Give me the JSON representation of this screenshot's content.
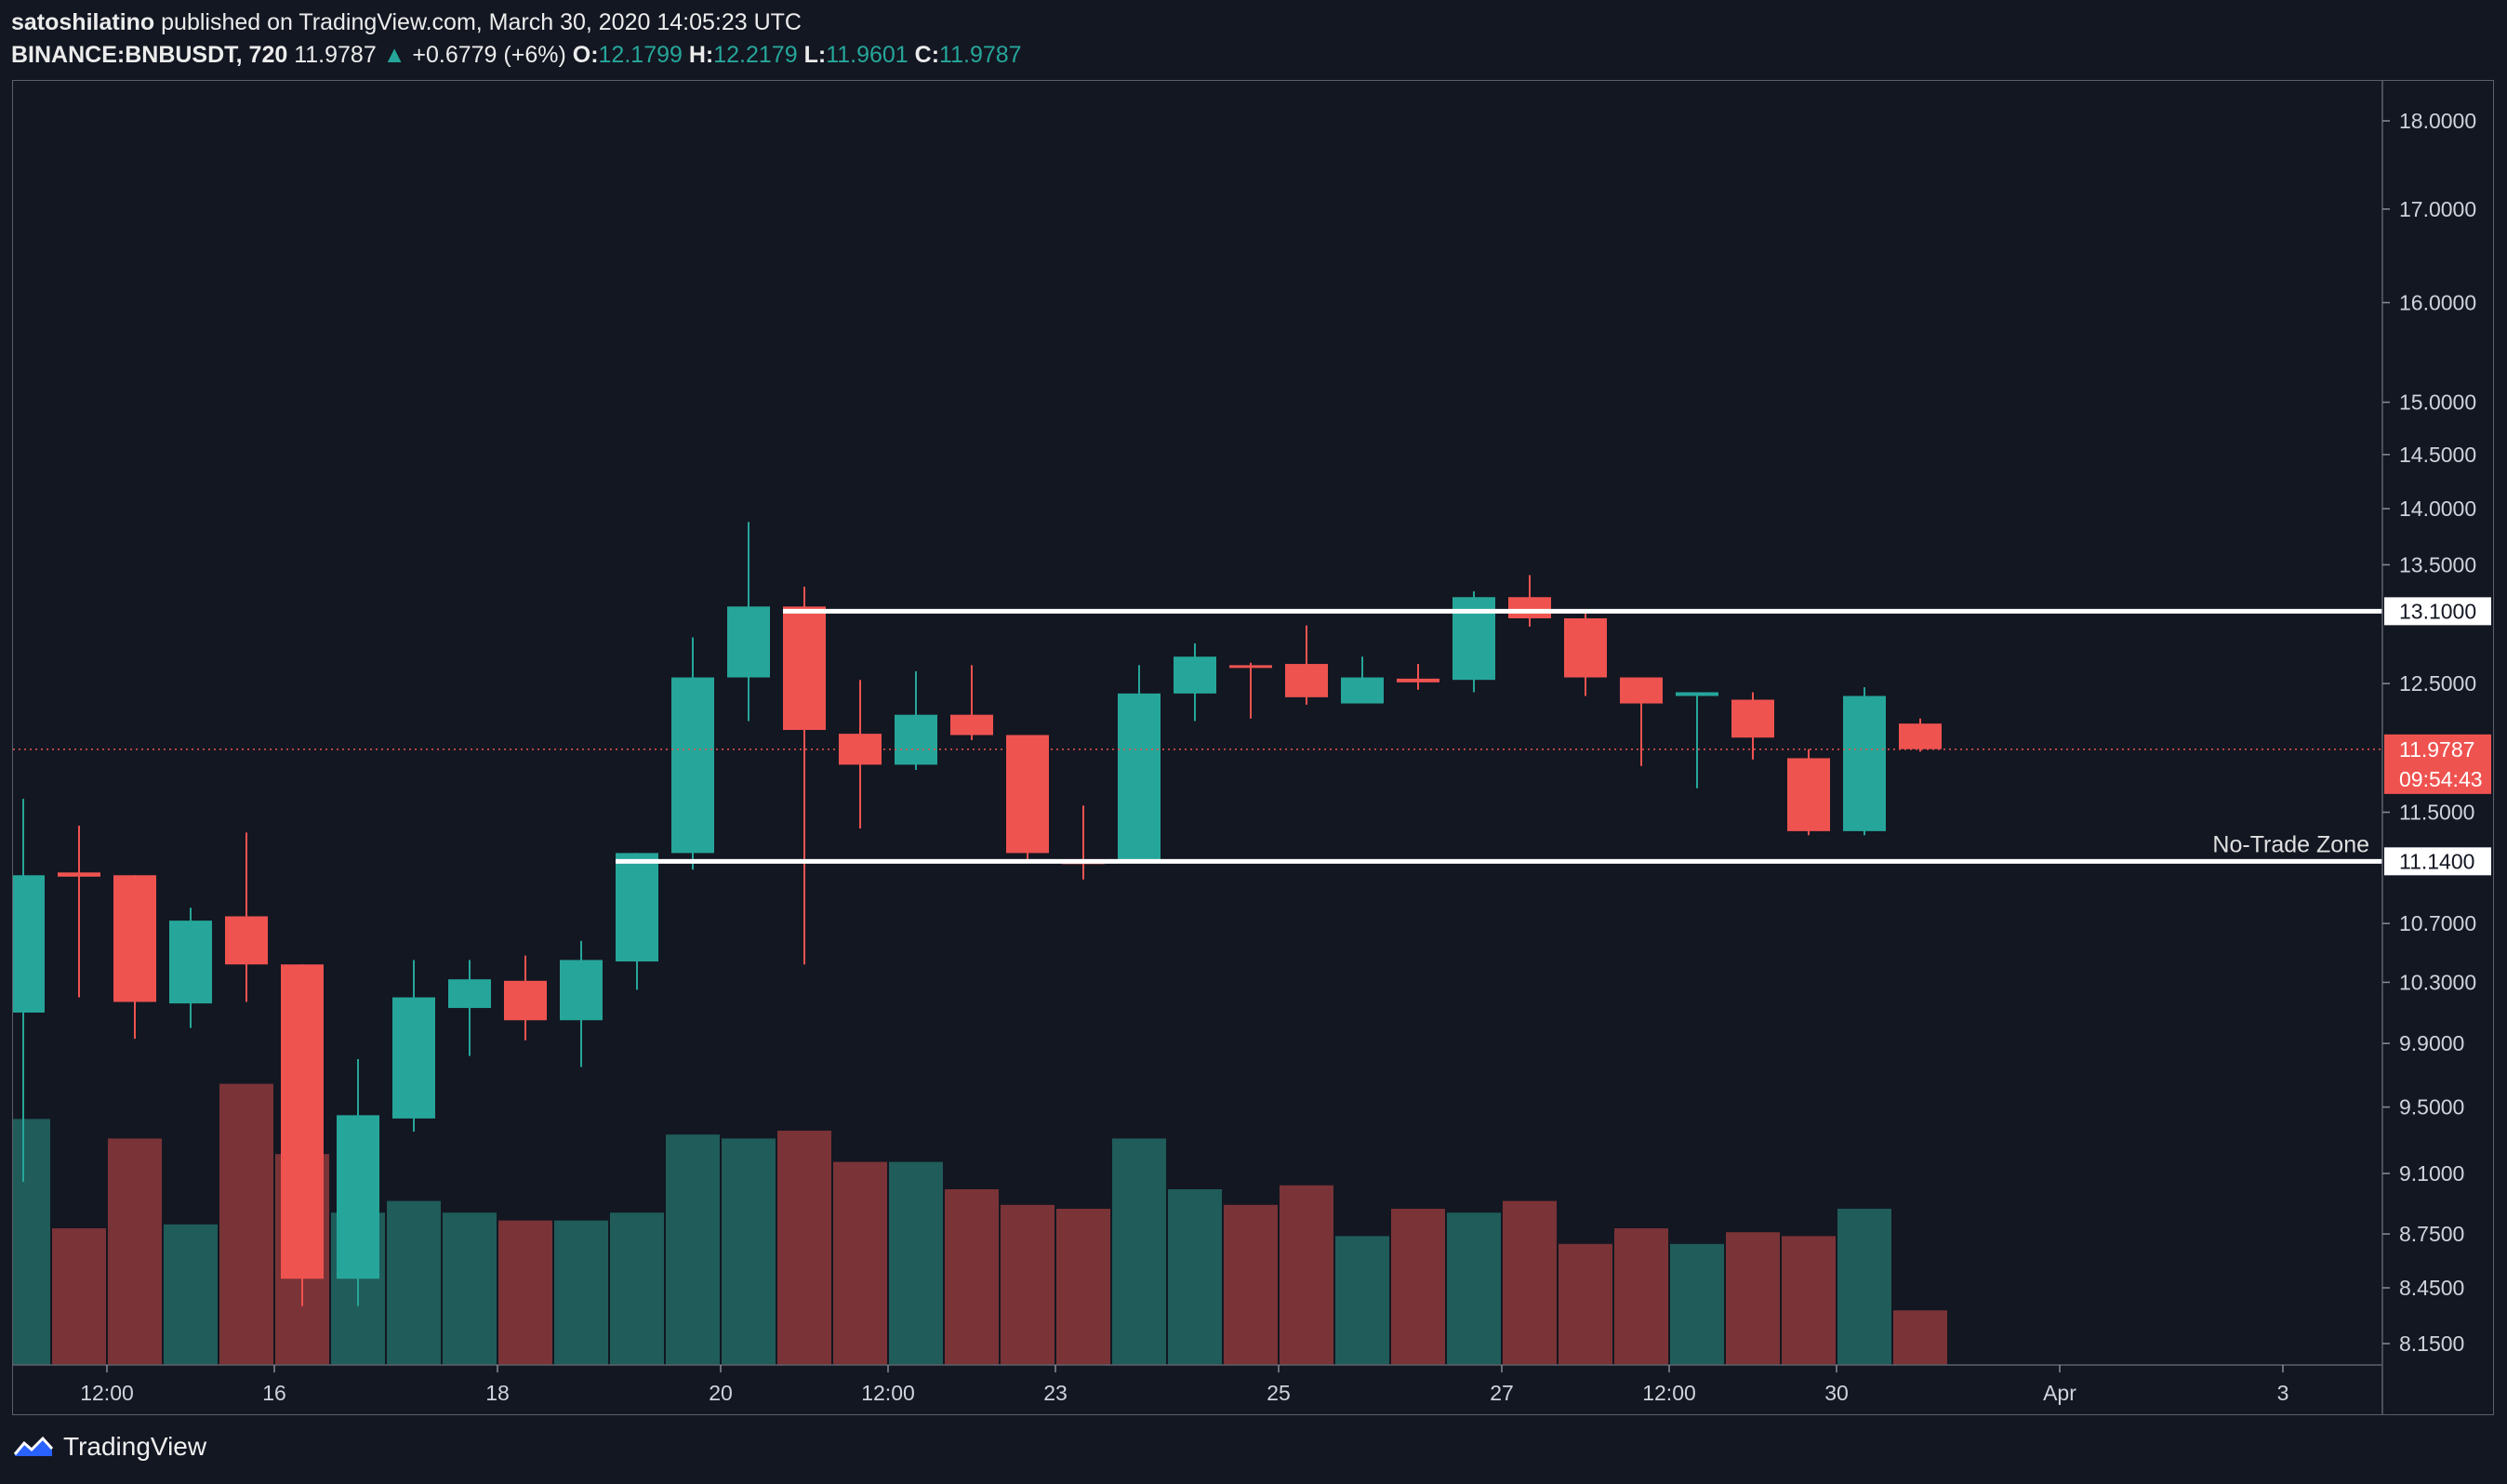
{
  "header": {
    "author": "satoshilatino",
    "published_text": "published on TradingView.com, March 30, 2020 14:05:23 UTC",
    "symbol": "BINANCE:BNBUSDT, 720",
    "last": "11.9787",
    "change": "+0.6779 (+6%)",
    "o_label": "O:",
    "o_value": "12.1799",
    "h_label": "H:",
    "h_value": "12.2179",
    "l_label": "L:",
    "l_value": "11.9601",
    "c_label": "C:",
    "c_value": "11.9787"
  },
  "footer": {
    "brand": "TradingView"
  },
  "colors": {
    "background": "#131722",
    "up": "#26a69a",
    "down": "#ef5350",
    "volume_up": "#1f5c5a",
    "volume_down": "#7a3336",
    "axis_text": "#d0d3da"
  },
  "chart_data": {
    "type": "candlestick",
    "symbol": "BINANCE:BNBUSDT",
    "interval": "720",
    "y_axis": {
      "scale": "log",
      "ticks": [
        18.0,
        17.0,
        16.0,
        15.0,
        14.5,
        14.0,
        13.5,
        12.5,
        11.5,
        10.7,
        10.3,
        9.9,
        9.5,
        9.1,
        8.75,
        8.45,
        8.15
      ],
      "tick_labels": [
        "18.0000",
        "17.0000",
        "16.0000",
        "15.0000",
        "14.5000",
        "14.0000",
        "13.5000",
        "12.5000",
        "11.5000",
        "10.7000",
        "10.3000",
        "9.9000",
        "9.5000",
        "9.1000",
        "8.7500",
        "8.4500",
        "8.1500"
      ]
    },
    "x_axis": {
      "ticks": [
        {
          "label": "12:00",
          "index": 1.5
        },
        {
          "label": "16",
          "index": 4.5
        },
        {
          "label": "18",
          "index": 8.5
        },
        {
          "label": "20",
          "index": 12.5
        },
        {
          "label": "12:00",
          "index": 15.5
        },
        {
          "label": "23",
          "index": 18.5
        },
        {
          "label": "25",
          "index": 22.5
        },
        {
          "label": "27",
          "index": 26.5
        },
        {
          "label": "12:00",
          "index": 29.5
        },
        {
          "label": "30",
          "index": 32.5
        },
        {
          "label": "Apr",
          "index": 36.5
        },
        {
          "label": "3",
          "index": 40.5
        }
      ]
    },
    "candles": [
      {
        "o": 10.1,
        "h": 11.6,
        "l": 9.05,
        "c": 11.04,
        "v": 0.63
      },
      {
        "o": 11.06,
        "h": 11.4,
        "l": 10.2,
        "c": 11.03,
        "v": 0.35
      },
      {
        "o": 11.04,
        "h": 11.04,
        "l": 9.93,
        "c": 10.17,
        "v": 0.58
      },
      {
        "o": 10.16,
        "h": 10.81,
        "l": 10.0,
        "c": 10.72,
        "v": 0.36
      },
      {
        "o": 10.75,
        "h": 11.35,
        "l": 10.17,
        "c": 10.42,
        "v": 0.72
      },
      {
        "o": 10.42,
        "h": 10.42,
        "l": 8.35,
        "c": 8.5,
        "v": 0.54
      },
      {
        "o": 8.5,
        "h": 9.8,
        "l": 8.35,
        "c": 9.45,
        "v": 0.39
      },
      {
        "o": 9.43,
        "h": 10.45,
        "l": 9.35,
        "c": 10.2,
        "v": 0.42
      },
      {
        "o": 10.13,
        "h": 10.45,
        "l": 9.82,
        "c": 10.32,
        "v": 0.39
      },
      {
        "o": 10.31,
        "h": 10.48,
        "l": 9.92,
        "c": 10.05,
        "v": 0.37
      },
      {
        "o": 10.05,
        "h": 10.58,
        "l": 9.75,
        "c": 10.45,
        "v": 0.37
      },
      {
        "o": 10.44,
        "h": 11.2,
        "l": 10.25,
        "c": 11.2,
        "v": 0.39
      },
      {
        "o": 11.2,
        "h": 12.88,
        "l": 11.08,
        "c": 12.55,
        "v": 0.59
      },
      {
        "o": 12.55,
        "h": 13.88,
        "l": 12.2,
        "c": 13.14,
        "v": 0.58
      },
      {
        "o": 13.14,
        "h": 13.31,
        "l": 10.42,
        "c": 12.13,
        "v": 0.6
      },
      {
        "o": 12.1,
        "h": 12.53,
        "l": 11.38,
        "c": 11.86,
        "v": 0.52
      },
      {
        "o": 11.86,
        "h": 12.6,
        "l": 11.82,
        "c": 12.25,
        "v": 0.52
      },
      {
        "o": 12.25,
        "h": 12.65,
        "l": 12.05,
        "c": 12.09,
        "v": 0.45
      },
      {
        "o": 12.09,
        "h": 12.09,
        "l": 11.14,
        "c": 11.2,
        "v": 0.41
      },
      {
        "o": 11.14,
        "h": 11.55,
        "l": 11.01,
        "c": 11.12,
        "v": 0.4
      },
      {
        "o": 11.14,
        "h": 12.65,
        "l": 11.14,
        "c": 12.42,
        "v": 0.58
      },
      {
        "o": 12.42,
        "h": 12.83,
        "l": 12.2,
        "c": 12.72,
        "v": 0.45
      },
      {
        "o": 12.65,
        "h": 12.67,
        "l": 12.22,
        "c": 12.64,
        "v": 0.41
      },
      {
        "o": 12.66,
        "h": 12.98,
        "l": 12.33,
        "c": 12.39,
        "v": 0.46
      },
      {
        "o": 12.34,
        "h": 12.72,
        "l": 12.34,
        "c": 12.55,
        "v": 0.33
      },
      {
        "o": 12.54,
        "h": 12.66,
        "l": 12.45,
        "c": 12.51,
        "v": 0.4
      },
      {
        "o": 12.53,
        "h": 13.27,
        "l": 12.43,
        "c": 13.22,
        "v": 0.39
      },
      {
        "o": 13.22,
        "h": 13.41,
        "l": 12.97,
        "c": 13.04,
        "v": 0.42
      },
      {
        "o": 13.04,
        "h": 13.1,
        "l": 12.4,
        "c": 12.55,
        "v": 0.31
      },
      {
        "o": 12.55,
        "h": 12.55,
        "l": 11.85,
        "c": 12.34,
        "v": 0.35
      },
      {
        "o": 12.4,
        "h": 12.42,
        "l": 11.68,
        "c": 12.43,
        "v": 0.31
      },
      {
        "o": 12.37,
        "h": 12.43,
        "l": 11.9,
        "c": 12.07,
        "v": 0.34
      },
      {
        "o": 11.91,
        "h": 11.98,
        "l": 11.33,
        "c": 11.36,
        "v": 0.33
      },
      {
        "o": 11.36,
        "h": 12.47,
        "l": 11.33,
        "c": 12.4,
        "v": 0.4
      },
      {
        "o": 12.18,
        "h": 12.22,
        "l": 11.96,
        "c": 11.98,
        "v": 0.14
      }
    ],
    "levels": [
      {
        "value": 13.1,
        "label": "13.1000",
        "start_index": 14
      },
      {
        "value": 11.14,
        "label": "11.1400",
        "start_index": 11,
        "annotation": "No-Trade Zone"
      }
    ],
    "last_price": {
      "value": 11.9787,
      "label": "11.9787",
      "countdown": "09:54:43"
    }
  }
}
